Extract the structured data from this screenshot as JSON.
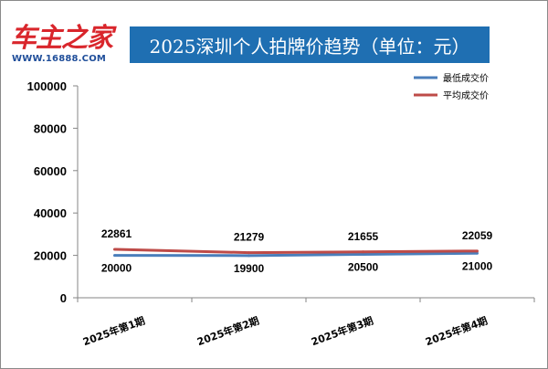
{
  "header": {
    "logo_text": "车主之家",
    "logo_url": "WWW.16888.COM",
    "title": "2025深圳个人拍牌价趋势（单位：元）",
    "title_bg": "#1f6fb2"
  },
  "chart_data": {
    "type": "line",
    "categories": [
      "2025年第1期",
      "2025年第2期",
      "2025年第3期",
      "2025年第4期"
    ],
    "series": [
      {
        "name": "最低成交价",
        "values": [
          20000,
          19900,
          20500,
          21000
        ],
        "color": "#4a7ebb"
      },
      {
        "name": "平均成交价",
        "values": [
          22861,
          21279,
          21655,
          22059
        ],
        "color": "#be4b48"
      }
    ],
    "ylim": [
      0,
      100000
    ],
    "yticks": [
      0,
      20000,
      40000,
      60000,
      80000,
      100000
    ],
    "grid": false,
    "legend": "top-right"
  }
}
